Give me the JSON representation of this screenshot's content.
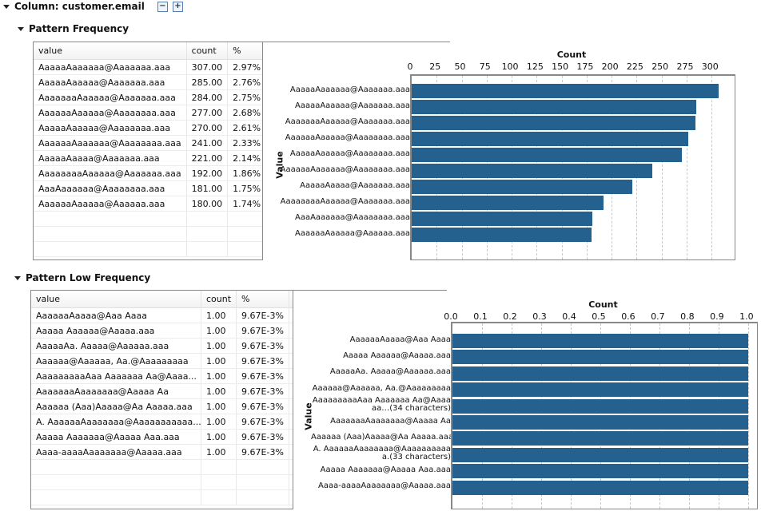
{
  "column_header": {
    "title": "Column: customer.email",
    "collapse_icon": "minus-square-icon",
    "expand_icon": "plus-square-icon"
  },
  "sections": [
    {
      "title": "Pattern Frequency",
      "table": {
        "columns": [
          "value",
          "count",
          "%"
        ],
        "rows": [
          [
            "AaaaaAaaaaaa@Aaaaaaa.aaa",
            "307.00",
            "2.97%"
          ],
          [
            "AaaaaAaaaaa@Aaaaaaa.aaa",
            "285.00",
            "2.76%"
          ],
          [
            "AaaaaaaAaaaaa@Aaaaaaa.aaa",
            "284.00",
            "2.75%"
          ],
          [
            "AaaaaaAaaaaa@Aaaaaaaa.aaa",
            "277.00",
            "2.68%"
          ],
          [
            "AaaaaAaaaaa@Aaaaaaaa.aaa",
            "270.00",
            "2.61%"
          ],
          [
            "AaaaaaAaaaaaa@Aaaaaaaa.aaa",
            "241.00",
            "2.33%"
          ],
          [
            "AaaaaAaaaa@Aaaaaaa.aaa",
            "221.00",
            "2.14%"
          ],
          [
            "AaaaaaaaAaaaaa@Aaaaaaa.aaa",
            "192.00",
            "1.86%"
          ],
          [
            "AaaAaaaaaa@Aaaaaaaa.aaa",
            "181.00",
            "1.75%"
          ],
          [
            "AaaaaaAaaaaa@Aaaaaa.aaa",
            "180.00",
            "1.74%"
          ]
        ]
      }
    },
    {
      "title": "Pattern Low Frequency",
      "table": {
        "columns": [
          "value",
          "count",
          "%"
        ],
        "rows": [
          [
            "AaaaaaAaaaa@Aaa Aaaa",
            "1.00",
            "9.67E-3%"
          ],
          [
            "Aaaaa Aaaaaa@Aaaaa.aaa",
            "1.00",
            "9.67E-3%"
          ],
          [
            "AaaaaAa. Aaaaa@Aaaaaa.aaa",
            "1.00",
            "9.67E-3%"
          ],
          [
            "Aaaaaa@Aaaaaa, Aa.@Aaaaaaaaa",
            "1.00",
            "9.67E-3%"
          ],
          [
            "AaaaaaaaaAaa Aaaaaaa Aa@Aaaa...",
            "1.00",
            "9.67E-3%"
          ],
          [
            "AaaaaaaAaaaaaaa@Aaaaa Aa",
            "1.00",
            "9.67E-3%"
          ],
          [
            "Aaaaaa (Aaa)Aaaaa@Aa Aaaaa.aaa",
            "1.00",
            "9.67E-3%"
          ],
          [
            "A. AaaaaaAaaaaaaa@Aaaaaaaaaaa...",
            "1.00",
            "9.67E-3%"
          ],
          [
            "Aaaaa Aaaaaaa@Aaaaa Aaa.aaa",
            "1.00",
            "9.67E-3%"
          ],
          [
            "Aaaa-aaaaAaaaaaaa@Aaaaa.aaa",
            "1.00",
            "9.67E-3%"
          ]
        ]
      }
    }
  ],
  "chart_data": [
    {
      "type": "bar",
      "orientation": "horizontal",
      "title": "Count",
      "xlabel": "Count",
      "ylabel": "Value",
      "xlim": [
        0,
        323
      ],
      "xticks": [
        0,
        25,
        50,
        75,
        100,
        125,
        150,
        175,
        200,
        225,
        250,
        275,
        300
      ],
      "grid": true,
      "color": "#24618f",
      "categories": [
        "AaaaaAaaaaaa@Aaaaaaa.aaa",
        "AaaaaAaaaaa@Aaaaaaa.aaa",
        "AaaaaaaAaaaaa@Aaaaaaa.aaa",
        "AaaaaaAaaaaa@Aaaaaaaa.aaa",
        "AaaaaAaaaaa@Aaaaaaaa.aaa",
        "AaaaaaAaaaaaa@Aaaaaaaa.aaa",
        "AaaaaAaaaa@Aaaaaaa.aaa",
        "AaaaaaaaAaaaaa@Aaaaaaa.aaa",
        "AaaAaaaaaa@Aaaaaaaa.aaa",
        "AaaaaaAaaaaa@Aaaaaa.aaa"
      ],
      "values": [
        307,
        285,
        284,
        277,
        270,
        241,
        221,
        192,
        181,
        180
      ]
    },
    {
      "type": "bar",
      "orientation": "horizontal",
      "title": "Count",
      "xlabel": "Count",
      "ylabel": "Value",
      "xlim": [
        0,
        1.03
      ],
      "xticks": [
        "0.0",
        "0.1",
        "0.2",
        "0.3",
        "0.4",
        "0.5",
        "0.6",
        "0.7",
        "0.8",
        "0.9",
        "1.0"
      ],
      "grid": true,
      "color": "#24618f",
      "categories": [
        "AaaaaaAaaaa@Aaa Aaaa",
        "Aaaaa Aaaaaa@Aaaaa.aaa",
        "AaaaaAa. Aaaaa@Aaaaaa.aaa",
        "Aaaaaa@Aaaaaa, Aa.@Aaaaaaaaa",
        "AaaaaaaaaAaa Aaaaaaa Aa@Aaaaaa…(34 characters)",
        "AaaaaaaAaaaaaaa@Aaaaa Aa",
        "Aaaaaa (Aaa)Aaaaa@Aa Aaaaa.aaa",
        "A. AaaaaaAaaaaaaa@Aaaaaaaaaaa.(33 characters)",
        "Aaaaa Aaaaaaa@Aaaaa Aaa.aaa",
        "Aaaa-aaaaAaaaaaaa@Aaaaa.aaa"
      ],
      "values": [
        1,
        1,
        1,
        1,
        1,
        1,
        1,
        1,
        1,
        1
      ]
    }
  ]
}
